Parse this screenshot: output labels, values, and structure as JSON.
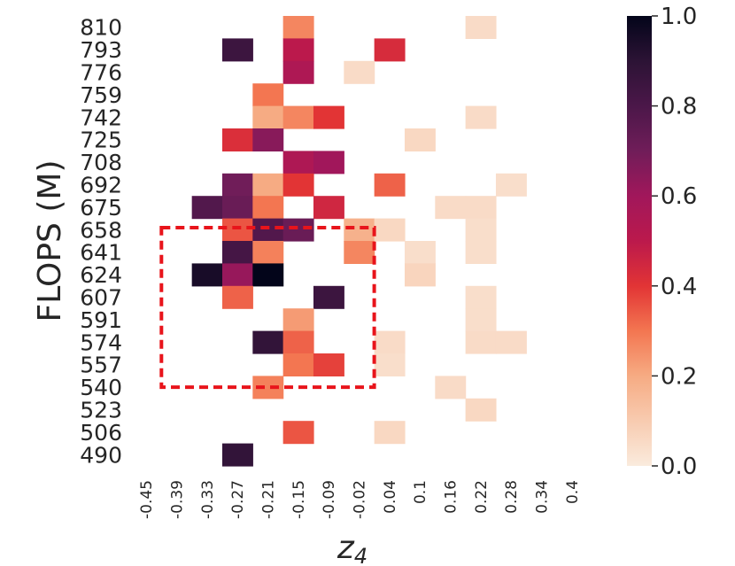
{
  "chart_data": {
    "type": "heatmap",
    "xlabel": "z",
    "xlabel_subscript": "4",
    "ylabel": "FLOPS (M)",
    "x_ticks": [
      "-0.45",
      "-0.39",
      "-0.33",
      "-0.27",
      "-0.21",
      "-0.15",
      "-0.09",
      "-0.02",
      "0.04",
      "0.1",
      "0.16",
      "0.22",
      "0.28",
      "0.34",
      "0.4"
    ],
    "y_ticks": [
      "810",
      "793",
      "776",
      "759",
      "742",
      "725",
      "708",
      "692",
      "675",
      "658",
      "641",
      "624",
      "607",
      "591",
      "574",
      "557",
      "540",
      "523",
      "506",
      "490"
    ],
    "colorbar": {
      "ticks": [
        "1.0",
        "0.8",
        "0.6",
        "0.4",
        "0.2",
        "0.0"
      ],
      "range": [
        0,
        1
      ],
      "colormap": "rocket_r"
    },
    "cells": [
      {
        "x": "-0.15",
        "y": "810",
        "v": 0.27
      },
      {
        "x": "0.22",
        "y": "810",
        "v": 0.05
      },
      {
        "x": "-0.27",
        "y": "793",
        "v": 0.85
      },
      {
        "x": "-0.15",
        "y": "793",
        "v": 0.5
      },
      {
        "x": "0.04",
        "y": "793",
        "v": 0.43
      },
      {
        "x": "-0.15",
        "y": "776",
        "v": 0.55
      },
      {
        "x": "-0.02",
        "y": "776",
        "v": 0.05
      },
      {
        "x": "-0.21",
        "y": "759",
        "v": 0.3
      },
      {
        "x": "-0.21",
        "y": "742",
        "v": 0.2
      },
      {
        "x": "-0.15",
        "y": "742",
        "v": 0.27
      },
      {
        "x": "-0.09",
        "y": "742",
        "v": 0.4
      },
      {
        "x": "0.22",
        "y": "742",
        "v": 0.05
      },
      {
        "x": "-0.27",
        "y": "725",
        "v": 0.42
      },
      {
        "x": "-0.21",
        "y": "725",
        "v": 0.65
      },
      {
        "x": "0.1",
        "y": "725",
        "v": 0.06
      },
      {
        "x": "-0.15",
        "y": "708",
        "v": 0.55
      },
      {
        "x": "-0.09",
        "y": "708",
        "v": 0.6
      },
      {
        "x": "-0.27",
        "y": "692",
        "v": 0.7
      },
      {
        "x": "-0.21",
        "y": "692",
        "v": 0.2
      },
      {
        "x": "-0.15",
        "y": "692",
        "v": 0.4
      },
      {
        "x": "0.04",
        "y": "692",
        "v": 0.33
      },
      {
        "x": "0.28",
        "y": "692",
        "v": 0.04
      },
      {
        "x": "-0.33",
        "y": "675",
        "v": 0.78
      },
      {
        "x": "-0.27",
        "y": "675",
        "v": 0.72
      },
      {
        "x": "-0.21",
        "y": "675",
        "v": 0.3
      },
      {
        "x": "-0.09",
        "y": "675",
        "v": 0.45
      },
      {
        "x": "0.16",
        "y": "675",
        "v": 0.05
      },
      {
        "x": "0.22",
        "y": "675",
        "v": 0.05
      },
      {
        "x": "-0.27",
        "y": "658",
        "v": 0.35
      },
      {
        "x": "-0.21",
        "y": "658",
        "v": 0.78
      },
      {
        "x": "-0.15",
        "y": "658",
        "v": 0.72
      },
      {
        "x": "-0.02",
        "y": "658",
        "v": 0.18
      },
      {
        "x": "0.04",
        "y": "658",
        "v": 0.06
      },
      {
        "x": "0.22",
        "y": "658",
        "v": 0.04
      },
      {
        "x": "-0.27",
        "y": "641",
        "v": 0.82
      },
      {
        "x": "-0.21",
        "y": "641",
        "v": 0.28
      },
      {
        "x": "-0.02",
        "y": "641",
        "v": 0.27
      },
      {
        "x": "0.1",
        "y": "641",
        "v": 0.04
      },
      {
        "x": "0.22",
        "y": "641",
        "v": 0.04
      },
      {
        "x": "-0.33",
        "y": "624",
        "v": 0.95
      },
      {
        "x": "-0.27",
        "y": "624",
        "v": 0.62
      },
      {
        "x": "-0.21",
        "y": "624",
        "v": 1.0
      },
      {
        "x": "0.1",
        "y": "624",
        "v": 0.07
      },
      {
        "x": "-0.27",
        "y": "607",
        "v": 0.33
      },
      {
        "x": "-0.09",
        "y": "607",
        "v": 0.85
      },
      {
        "x": "0.22",
        "y": "607",
        "v": 0.04
      },
      {
        "x": "-0.15",
        "y": "591",
        "v": 0.23
      },
      {
        "x": "0.22",
        "y": "591",
        "v": 0.04
      },
      {
        "x": "-0.21",
        "y": "574",
        "v": 0.88
      },
      {
        "x": "-0.15",
        "y": "574",
        "v": 0.33
      },
      {
        "x": "0.04",
        "y": "574",
        "v": 0.05
      },
      {
        "x": "0.22",
        "y": "574",
        "v": 0.05
      },
      {
        "x": "0.28",
        "y": "574",
        "v": 0.05
      },
      {
        "x": "-0.15",
        "y": "557",
        "v": 0.3
      },
      {
        "x": "-0.09",
        "y": "557",
        "v": 0.38
      },
      {
        "x": "0.04",
        "y": "557",
        "v": 0.04
      },
      {
        "x": "-0.21",
        "y": "540",
        "v": 0.28
      },
      {
        "x": "0.16",
        "y": "540",
        "v": 0.05
      },
      {
        "x": "0.22",
        "y": "523",
        "v": 0.06
      },
      {
        "x": "-0.15",
        "y": "506",
        "v": 0.35
      },
      {
        "x": "0.04",
        "y": "506",
        "v": 0.06
      },
      {
        "x": "-0.27",
        "y": "490",
        "v": 0.88
      }
    ],
    "highlight_box": {
      "x_range": [
        "-0.39",
        "-0.02"
      ],
      "y_range": [
        "641",
        "540"
      ],
      "color": "#e8141b",
      "style": "dashed"
    },
    "grid": false
  }
}
